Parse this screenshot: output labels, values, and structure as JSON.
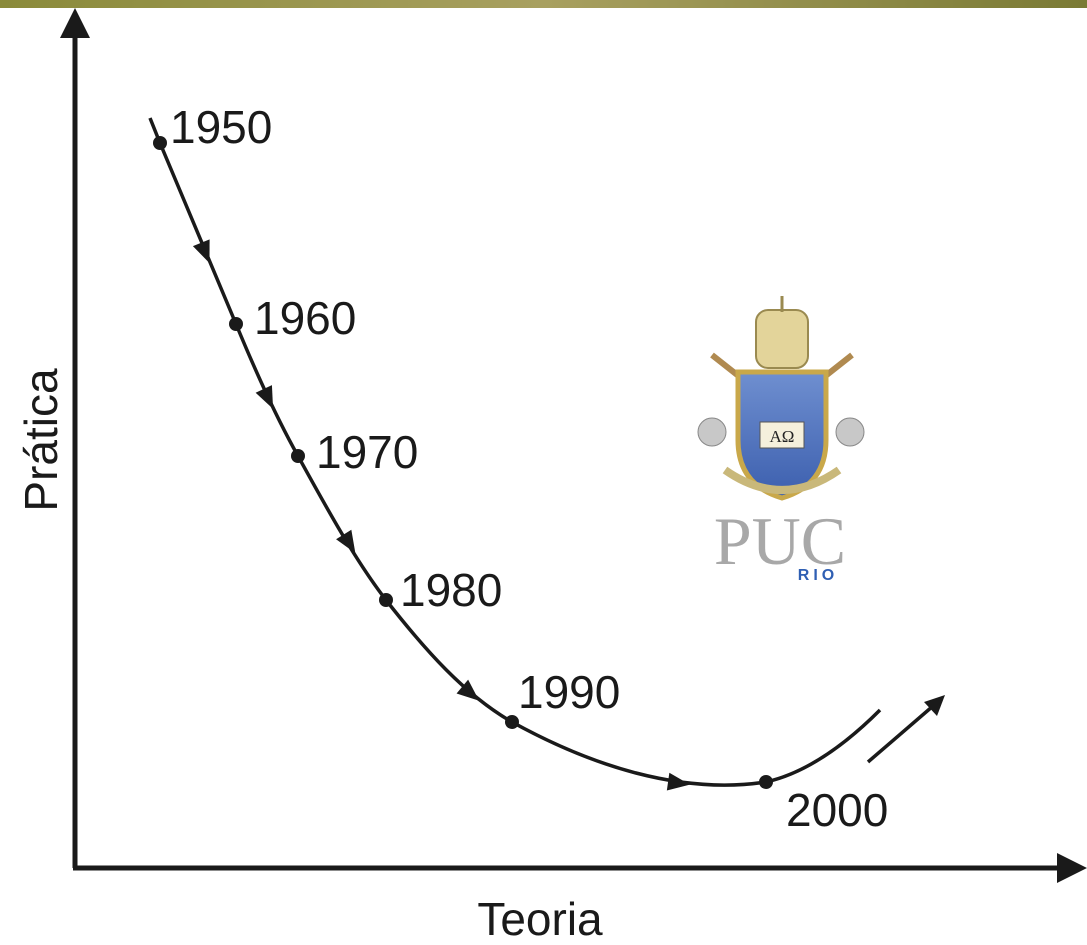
{
  "axes": {
    "y_label": "Prática",
    "x_label": "Teoria"
  },
  "milestones": [
    "1950",
    "1960",
    "1970",
    "1980",
    "1990",
    "2000"
  ],
  "logo": {
    "emblem": "ΑΩ",
    "name": "PUC",
    "city": "RIO"
  }
}
